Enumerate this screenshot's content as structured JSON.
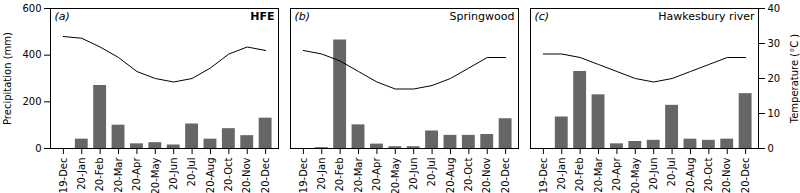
{
  "chart_data": [
    {
      "type": "bar",
      "title": "HFE",
      "annotations": [
        "(a)"
      ],
      "categories": [
        "19-Dec",
        "20-Jan",
        "20-Feb",
        "20-Mar",
        "20-Apr",
        "20-May",
        "20-Jun",
        "20-Jul",
        "20-Aug",
        "20-Oct",
        "20-Nov",
        "20-Dec"
      ],
      "series": [
        {
          "type": "bar",
          "color": "#666666",
          "values": [
            0,
            40,
            270,
            100,
            20,
            25,
            15,
            105,
            40,
            85,
            55,
            130
          ]
        },
        {
          "type": "line",
          "color": "#000000",
          "axis": "y2",
          "values": [
            32,
            31.5,
            29,
            26,
            22,
            20,
            19,
            20,
            23,
            27,
            29,
            28
          ]
        }
      ],
      "ylabel": "Precipitation (mm)",
      "ylim": [
        0,
        600
      ],
      "yticks": [
        0,
        200,
        400,
        600
      ],
      "y2lim": [
        0,
        40
      ]
    },
    {
      "type": "bar",
      "title": "Springwood",
      "annotations": [
        "(b)"
      ],
      "categories": [
        "19-Dec",
        "20-Jan",
        "20-Feb",
        "20-Mar",
        "20-Apr",
        "20-May",
        "20-Jun",
        "20-Jul",
        "20-Aug",
        "20-Oct",
        "20-Nov",
        "20-Dec"
      ],
      "series": [
        {
          "type": "bar",
          "color": "#666666",
          "values": [
            0,
            5,
            620,
            135,
            25,
            10,
            10,
            100,
            75,
            75,
            80,
            170
          ]
        },
        {
          "type": "line",
          "color": "#000000",
          "axis": "y2",
          "values": [
            28,
            27,
            25,
            22,
            19,
            17,
            17,
            18,
            20,
            23,
            26,
            26
          ]
        }
      ],
      "ylim": [
        0,
        800
      ],
      "y2lim": [
        0,
        40
      ],
      "tick_labels": "x"
    },
    {
      "type": "bar",
      "title": "Hawkesbury river",
      "annotations": [
        "(c)"
      ],
      "categories": [
        "19-Dec",
        "20-Jan",
        "20-Feb",
        "20-Mar",
        "20-Apr",
        "20-May",
        "20-Jun",
        "20-Jul",
        "20-Aug",
        "20-Oct",
        "20-Nov",
        "20-Dec"
      ],
      "series": [
        {
          "type": "bar",
          "color": "#666666",
          "values": [
            0,
            135,
            330,
            230,
            20,
            30,
            35,
            185,
            40,
            35,
            40,
            235
          ]
        },
        {
          "type": "line",
          "color": "#000000",
          "axis": "y2",
          "values": [
            27,
            27,
            26,
            24,
            22,
            20,
            19,
            20,
            22,
            24,
            26,
            26
          ]
        }
      ],
      "ylim": [
        0,
        600
      ],
      "y2label": "Temperature (°C )",
      "y2lim": [
        0,
        40
      ],
      "y2ticks": [
        0,
        10,
        20,
        30,
        40
      ]
    }
  ]
}
